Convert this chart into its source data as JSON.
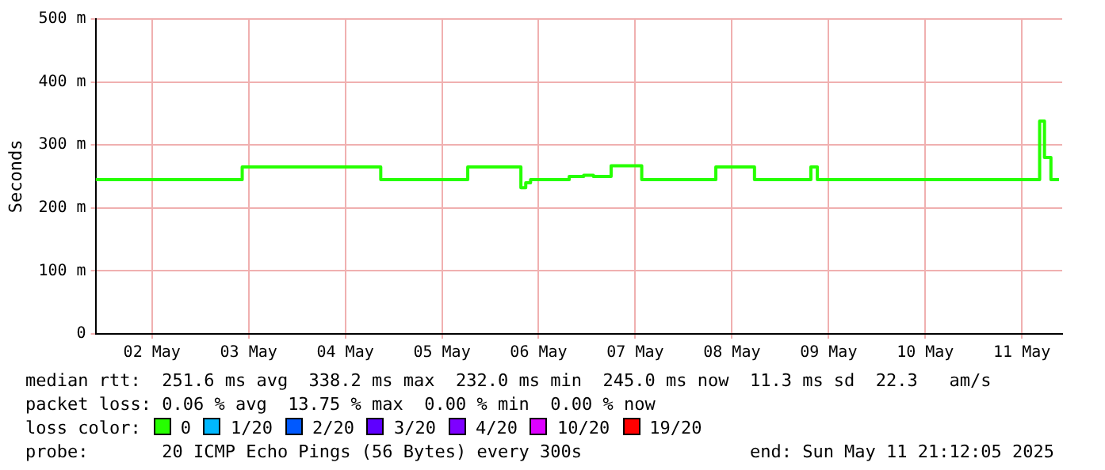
{
  "chart_data": {
    "type": "step",
    "ylabel": "Seconds",
    "x": [
      "2025-05-01T22:00",
      "2025-05-03T10:24",
      "2025-05-04T20:48",
      "2025-05-05T18:24",
      "2025-05-06T07:36",
      "2025-05-06T08:48",
      "2025-05-06T10:00",
      "2025-05-06T19:36",
      "2025-05-06T23:12",
      "2025-05-07T01:36",
      "2025-05-07T06:00",
      "2025-05-07T13:36",
      "2025-05-08T08:00",
      "2025-05-08T17:36",
      "2025-05-09T07:36",
      "2025-05-09T09:12",
      "2025-05-11T16:24",
      "2025-05-11T17:36",
      "2025-05-11T19:12",
      "2025-05-11T21:12"
    ],
    "series": [
      {
        "name": "0",
        "color": "#26ff00",
        "values": [
          245,
          265,
          245,
          265,
          232,
          240,
          245,
          250,
          252,
          250,
          267,
          245,
          265,
          245,
          265,
          245,
          338,
          280,
          245,
          245
        ]
      },
      {
        "name": "1/20",
        "color": "#00b8ff",
        "values": [
          null,
          null,
          null,
          null,
          null,
          null,
          null,
          null,
          null,
          null,
          null,
          null,
          null,
          null,
          null,
          null,
          null,
          null,
          null,
          null
        ]
      },
      {
        "name": "2/20",
        "color": "#0059ff",
        "values": [
          null,
          null,
          null,
          null,
          null,
          null,
          null,
          null,
          null,
          null,
          null,
          null,
          null,
          null,
          null,
          null,
          null,
          null,
          null,
          null
        ]
      },
      {
        "name": "3/20",
        "color": "#5e00ff",
        "values": [
          null,
          null,
          null,
          null,
          null,
          null,
          null,
          null,
          null,
          null,
          null,
          null,
          null,
          null,
          null,
          null,
          null,
          null,
          null,
          null
        ]
      },
      {
        "name": "4/20",
        "color": "#7e00ff",
        "values": [
          null,
          null,
          null,
          null,
          null,
          null,
          null,
          null,
          null,
          null,
          null,
          null,
          null,
          null,
          null,
          null,
          null,
          null,
          null,
          null
        ]
      },
      {
        "name": "10/20",
        "color": "#dd00ff",
        "values": [
          null,
          null,
          null,
          null,
          null,
          null,
          null,
          null,
          null,
          null,
          null,
          null,
          null,
          null,
          null,
          null,
          null,
          null,
          null,
          null
        ]
      },
      {
        "name": "19/20",
        "color": "#ff0000",
        "values": [
          null,
          null,
          null,
          null,
          null,
          null,
          null,
          null,
          null,
          null,
          null,
          null,
          null,
          null,
          null,
          null,
          null,
          null,
          null,
          null
        ]
      }
    ],
    "xlim": [
      "2025-05-01T22:00",
      "2025-05-11T22:00"
    ],
    "xticks": [
      {
        "value": "2025-05-02T12:00",
        "label": "02 May"
      },
      {
        "value": "2025-05-03T12:00",
        "label": "03 May"
      },
      {
        "value": "2025-05-04T12:00",
        "label": "04 May"
      },
      {
        "value": "2025-05-05T12:00",
        "label": "05 May"
      },
      {
        "value": "2025-05-06T12:00",
        "label": "06 May"
      },
      {
        "value": "2025-05-07T12:00",
        "label": "07 May"
      },
      {
        "value": "2025-05-08T12:00",
        "label": "08 May"
      },
      {
        "value": "2025-05-09T12:00",
        "label": "09 May"
      },
      {
        "value": "2025-05-10T12:00",
        "label": "10 May"
      },
      {
        "value": "2025-05-11T12:00",
        "label": "11 May"
      }
    ],
    "ylim": [
      0,
      500
    ],
    "yticks": [
      {
        "value": 0,
        "label": "0"
      },
      {
        "value": 100,
        "label": "100 m"
      },
      {
        "value": 200,
        "label": "200 m"
      },
      {
        "value": 300,
        "label": "300 m"
      },
      {
        "value": 400,
        "label": "400 m"
      },
      {
        "value": 500,
        "label": "500 m"
      }
    ],
    "grid": true,
    "legend": "bottom",
    "marker": "none",
    "annotations": [
      "median rtt:  251.6 ms avg  338.2 ms max  232.0 ms min  245.0 ms now  11.3 ms sd  22.3   am/s",
      "packet loss: 0.06 % avg  13.75 % max  0.00 % min  0.00 % now",
      "loss color:",
      "probe:       20 ICMP Echo Pings (56 Bytes) every 300s                end: Sun May 11 21:12:05 2025"
    ]
  }
}
